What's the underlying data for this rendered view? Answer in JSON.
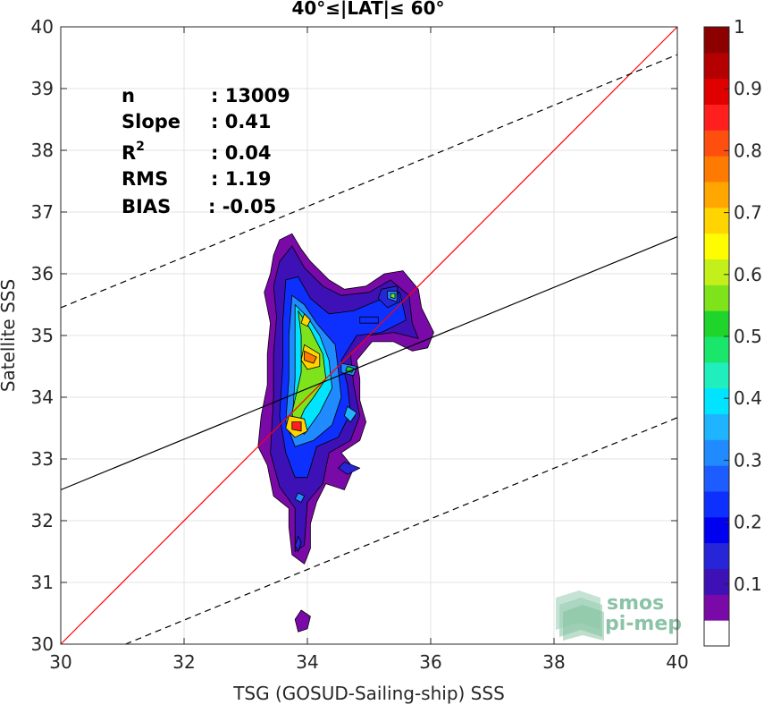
{
  "chart_data": {
    "type": "scatter",
    "title": "40°≤|LAT|≤ 60°",
    "xlabel": "TSG (GOSUD-Sailing-ship) SSS",
    "ylabel": "Satellite SSS",
    "xlim": [
      30,
      40
    ],
    "ylim": [
      30,
      40
    ],
    "xticks": [
      30,
      32,
      34,
      36,
      38,
      40
    ],
    "yticks": [
      30,
      31,
      32,
      33,
      34,
      35,
      36,
      37,
      38,
      39,
      40
    ],
    "grid": true,
    "stats": [
      {
        "label": "n",
        "value": ": 13009"
      },
      {
        "label": "Slope",
        "value": ": 0.41"
      },
      {
        "label": "R",
        "sup": "2",
        "value": ": 0.04"
      },
      {
        "label": "RMS",
        "value": ": 1.19"
      },
      {
        "label": "BIAS",
        "value": ": -0.05"
      }
    ],
    "lines": [
      {
        "name": "one-to-one",
        "color": "#ff0000",
        "style": "solid",
        "x": [
          30,
          40
        ],
        "y": [
          30,
          40
        ]
      },
      {
        "name": "fit",
        "color": "#000000",
        "style": "solid",
        "x": [
          30,
          40
        ],
        "y": [
          32.5,
          36.6
        ]
      },
      {
        "name": "fit-upper",
        "color": "#000000",
        "style": "dashed",
        "x": [
          30,
          40
        ],
        "y": [
          35.45,
          39.55
        ]
      },
      {
        "name": "fit-lower",
        "color": "#000000",
        "style": "dashed",
        "x": [
          31.05,
          40
        ],
        "y": [
          30,
          33.67
        ]
      }
    ],
    "density_regions": [
      {
        "level": 0.05,
        "points": [
          [
            33.45,
            36.3
          ],
          [
            33.55,
            36.55
          ],
          [
            33.75,
            36.65
          ],
          [
            33.9,
            36.4
          ],
          [
            34.05,
            36.2
          ],
          [
            34.35,
            35.9
          ],
          [
            34.6,
            35.75
          ],
          [
            34.95,
            35.8
          ],
          [
            35.25,
            36.0
          ],
          [
            35.55,
            36.05
          ],
          [
            35.8,
            35.75
          ],
          [
            35.85,
            35.45
          ],
          [
            36.05,
            35.05
          ],
          [
            35.95,
            34.8
          ],
          [
            35.7,
            34.75
          ],
          [
            35.4,
            34.9
          ],
          [
            35.05,
            34.9
          ],
          [
            34.8,
            34.6
          ],
          [
            34.85,
            34.3
          ],
          [
            34.85,
            33.95
          ],
          [
            34.95,
            33.6
          ],
          [
            34.85,
            33.3
          ],
          [
            34.55,
            33.1
          ],
          [
            34.75,
            32.85
          ],
          [
            34.6,
            32.5
          ],
          [
            34.3,
            32.6
          ],
          [
            34.15,
            32.3
          ],
          [
            34.05,
            31.95
          ],
          [
            34.05,
            31.55
          ],
          [
            33.95,
            31.3
          ],
          [
            33.75,
            31.45
          ],
          [
            33.7,
            31.9
          ],
          [
            33.7,
            32.2
          ],
          [
            33.45,
            32.4
          ],
          [
            33.35,
            32.9
          ],
          [
            33.2,
            33.2
          ],
          [
            33.25,
            33.7
          ],
          [
            33.35,
            34.2
          ],
          [
            33.35,
            34.7
          ],
          [
            33.4,
            35.2
          ],
          [
            33.3,
            35.7
          ],
          [
            33.4,
            36.0
          ]
        ]
      },
      {
        "level": 0.05,
        "points": [
          [
            33.8,
            30.4
          ],
          [
            33.9,
            30.55
          ],
          [
            34.05,
            30.45
          ],
          [
            34.0,
            30.25
          ],
          [
            33.85,
            30.2
          ]
        ]
      },
      {
        "level": 0.1,
        "points": [
          [
            33.55,
            36.2
          ],
          [
            33.75,
            36.45
          ],
          [
            33.95,
            36.1
          ],
          [
            34.25,
            35.8
          ],
          [
            34.55,
            35.65
          ],
          [
            35.0,
            35.7
          ],
          [
            35.35,
            35.9
          ],
          [
            35.65,
            35.65
          ],
          [
            35.7,
            35.2
          ],
          [
            35.8,
            34.95
          ],
          [
            35.4,
            35.05
          ],
          [
            35.0,
            35.0
          ],
          [
            34.7,
            34.7
          ],
          [
            34.75,
            34.2
          ],
          [
            34.85,
            33.7
          ],
          [
            34.7,
            33.3
          ],
          [
            34.35,
            33.1
          ],
          [
            34.25,
            32.6
          ],
          [
            34.0,
            32.3
          ],
          [
            33.95,
            31.6
          ],
          [
            33.8,
            31.5
          ],
          [
            33.8,
            32.2
          ],
          [
            33.55,
            32.55
          ],
          [
            33.4,
            33.1
          ],
          [
            33.45,
            34.0
          ],
          [
            33.45,
            34.7
          ],
          [
            33.5,
            35.3
          ],
          [
            33.45,
            35.8
          ]
        ]
      },
      {
        "level": 0.2,
        "points": [
          [
            33.65,
            35.9
          ],
          [
            33.85,
            35.95
          ],
          [
            34.05,
            35.6
          ],
          [
            34.35,
            35.35
          ],
          [
            34.75,
            35.4
          ],
          [
            35.1,
            35.55
          ],
          [
            35.5,
            35.7
          ],
          [
            35.6,
            35.25
          ],
          [
            35.2,
            35.05
          ],
          [
            34.8,
            35.0
          ],
          [
            34.55,
            34.6
          ],
          [
            34.65,
            34.2
          ],
          [
            34.7,
            33.75
          ],
          [
            34.5,
            33.35
          ],
          [
            34.15,
            33.2
          ],
          [
            34.0,
            32.7
          ],
          [
            33.8,
            32.7
          ],
          [
            33.65,
            33.1
          ],
          [
            33.55,
            33.7
          ],
          [
            33.6,
            34.5
          ],
          [
            33.6,
            35.2
          ]
        ]
      },
      {
        "level": 0.3,
        "points": [
          [
            33.75,
            35.65
          ],
          [
            33.95,
            35.5
          ],
          [
            34.15,
            35.2
          ],
          [
            34.45,
            34.85
          ],
          [
            34.5,
            34.45
          ],
          [
            34.55,
            34.0
          ],
          [
            34.4,
            33.55
          ],
          [
            34.1,
            33.3
          ],
          [
            33.8,
            33.2
          ],
          [
            33.65,
            33.6
          ],
          [
            33.7,
            34.3
          ],
          [
            33.7,
            35.0
          ]
        ]
      },
      {
        "level": 0.4,
        "points": [
          [
            33.8,
            35.5
          ],
          [
            34.0,
            35.3
          ],
          [
            34.2,
            35.0
          ],
          [
            34.35,
            34.6
          ],
          [
            34.4,
            34.15
          ],
          [
            34.2,
            33.75
          ],
          [
            33.95,
            33.4
          ],
          [
            33.75,
            33.55
          ],
          [
            33.8,
            34.3
          ],
          [
            33.8,
            35.0
          ]
        ]
      },
      {
        "level": 0.55,
        "points": [
          [
            33.85,
            35.4
          ],
          [
            34.05,
            35.1
          ],
          [
            34.25,
            34.7
          ],
          [
            34.3,
            34.3
          ],
          [
            34.1,
            34.0
          ],
          [
            33.95,
            33.8
          ],
          [
            33.8,
            33.45
          ],
          [
            33.75,
            33.75
          ],
          [
            33.9,
            34.4
          ],
          [
            33.9,
            35.0
          ]
        ]
      },
      {
        "level": 0.7,
        "points": [
          [
            33.95,
            35.35
          ],
          [
            34.05,
            35.25
          ],
          [
            34.0,
            35.15
          ],
          [
            33.9,
            35.2
          ]
        ]
      },
      {
        "level": 0.7,
        "points": [
          [
            33.95,
            34.85
          ],
          [
            34.2,
            34.7
          ],
          [
            34.2,
            34.5
          ],
          [
            34.0,
            34.45
          ],
          [
            33.9,
            34.6
          ]
        ]
      },
      {
        "level": 0.7,
        "points": [
          [
            33.7,
            33.7
          ],
          [
            33.95,
            33.65
          ],
          [
            34.0,
            33.45
          ],
          [
            33.8,
            33.35
          ],
          [
            33.65,
            33.5
          ]
        ]
      },
      {
        "level": 0.8,
        "points": [
          [
            33.95,
            34.75
          ],
          [
            34.15,
            34.65
          ],
          [
            34.1,
            34.55
          ],
          [
            33.95,
            34.6
          ]
        ]
      },
      {
        "level": 0.85,
        "points": [
          [
            33.75,
            33.6
          ],
          [
            33.9,
            33.6
          ],
          [
            33.9,
            33.45
          ],
          [
            33.75,
            33.48
          ]
        ]
      },
      {
        "level": 0.15,
        "points": [
          [
            35.2,
            35.75
          ],
          [
            35.45,
            35.8
          ],
          [
            35.5,
            35.55
          ],
          [
            35.3,
            35.45
          ],
          [
            35.15,
            35.6
          ]
        ]
      },
      {
        "level": 0.3,
        "points": [
          [
            35.3,
            35.72
          ],
          [
            35.45,
            35.72
          ],
          [
            35.45,
            35.55
          ],
          [
            35.3,
            35.6
          ]
        ]
      },
      {
        "level": 0.55,
        "points": [
          [
            35.35,
            35.68
          ],
          [
            35.42,
            35.68
          ],
          [
            35.42,
            35.6
          ],
          [
            35.35,
            35.62
          ]
        ]
      },
      {
        "level": 0.2,
        "points": [
          [
            34.85,
            35.3
          ],
          [
            35.15,
            35.3
          ],
          [
            35.15,
            35.2
          ],
          [
            34.85,
            35.2
          ]
        ]
      },
      {
        "level": 0.3,
        "points": [
          [
            34.55,
            34.55
          ],
          [
            34.8,
            34.5
          ],
          [
            34.75,
            34.35
          ],
          [
            34.55,
            34.4
          ]
        ]
      },
      {
        "level": 0.5,
        "points": [
          [
            34.65,
            34.5
          ],
          [
            34.75,
            34.47
          ],
          [
            34.72,
            34.4
          ],
          [
            34.62,
            34.43
          ]
        ]
      },
      {
        "level": 0.35,
        "points": [
          [
            34.65,
            33.85
          ],
          [
            34.8,
            33.75
          ],
          [
            34.7,
            33.6
          ],
          [
            34.6,
            33.7
          ]
        ]
      },
      {
        "level": 0.15,
        "points": [
          [
            34.6,
            32.95
          ],
          [
            34.85,
            32.85
          ],
          [
            34.65,
            32.75
          ],
          [
            34.5,
            32.85
          ]
        ]
      },
      {
        "level": 0.3,
        "points": [
          [
            33.85,
            32.45
          ],
          [
            33.95,
            32.4
          ],
          [
            33.9,
            32.3
          ],
          [
            33.8,
            32.35
          ]
        ]
      },
      {
        "level": 0.15,
        "points": [
          [
            33.85,
            31.75
          ],
          [
            33.9,
            31.65
          ],
          [
            33.85,
            31.5
          ],
          [
            33.8,
            31.6
          ]
        ]
      }
    ]
  },
  "colorbar": {
    "range": [
      0,
      1
    ],
    "ticks": [
      "0.1",
      "0.2",
      "0.3",
      "0.4",
      "0.5",
      "0.6",
      "0.7",
      "0.8",
      "0.9",
      "1"
    ],
    "tick_values": [
      0.1,
      0.2,
      0.3,
      0.4,
      0.5,
      0.6,
      0.7,
      0.8,
      0.9,
      1.0
    ],
    "colors": [
      "#ffffff",
      "#7a0aa8",
      "#3d11b5",
      "#2626d8",
      "#0000f0",
      "#0d30ff",
      "#1d5cff",
      "#1f8bff",
      "#1fb4ff",
      "#00e4ff",
      "#21eebd",
      "#19e66b",
      "#1fd42b",
      "#7fe31c",
      "#c3f01a",
      "#fffb00",
      "#ffd400",
      "#ffa600",
      "#ff7a00",
      "#ff4f0f",
      "#ff1f1f",
      "#e00000",
      "#b40000",
      "#8c0000"
    ]
  },
  "logo": {
    "line1": "smos",
    "line2": "pi-mep"
  }
}
